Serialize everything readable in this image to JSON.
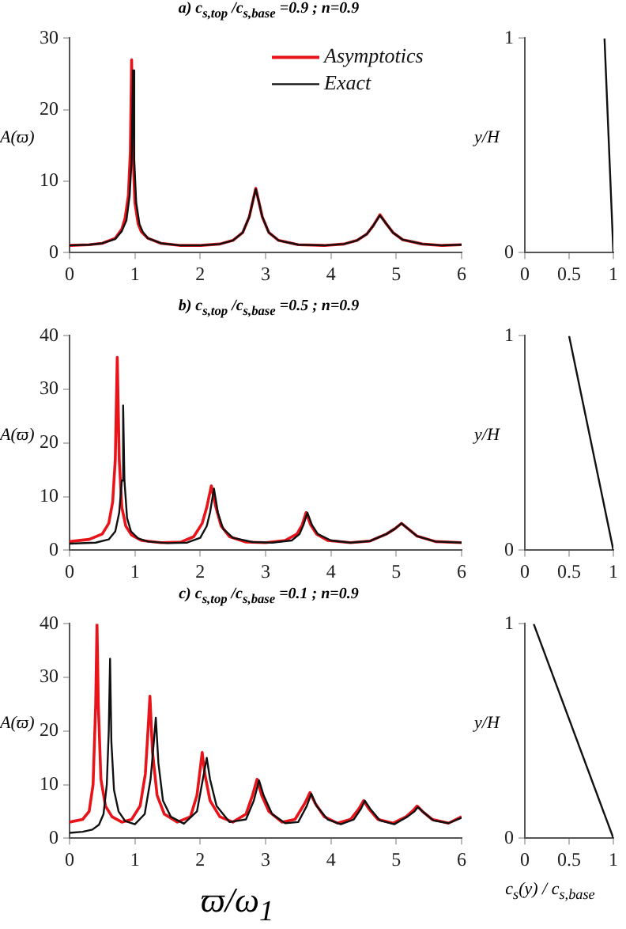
{
  "chart_data": [
    {
      "type": "line",
      "title": "a) c$_{s,top}$ /c$_{s,base}$ =0.9 ; n=0.9",
      "ylabel": "A(ϖ)",
      "xlim": [
        0,
        6
      ],
      "xticks": [
        0,
        1,
        2,
        3,
        4,
        5,
        6
      ],
      "ylim": [
        0,
        30
      ],
      "yticks": [
        0,
        10,
        20,
        30
      ],
      "grid": false,
      "marker": "none",
      "legend": "top right",
      "series": [
        {
          "name": "Asymptotics",
          "color": "#e8141a",
          "x": [
            0,
            0.3,
            0.5,
            0.7,
            0.8,
            0.85,
            0.9,
            0.93,
            0.95,
            0.97,
            1.0,
            1.05,
            1.1,
            1.2,
            1.4,
            1.7,
            2.0,
            2.3,
            2.5,
            2.65,
            2.75,
            2.8,
            2.85,
            2.9,
            2.95,
            3.05,
            3.2,
            3.5,
            3.9,
            4.2,
            4.4,
            4.55,
            4.65,
            4.75,
            4.85,
            4.95,
            5.1,
            5.4,
            5.7,
            6
          ],
          "values": [
            1,
            1.1,
            1.3,
            2,
            3.3,
            4.8,
            8,
            14,
            27,
            14,
            7,
            4,
            2.9,
            2,
            1.3,
            1,
            1,
            1.2,
            1.7,
            2.8,
            5,
            7,
            9,
            7,
            5,
            2.8,
            1.7,
            1.1,
            1,
            1.2,
            1.7,
            2.6,
            3.8,
            5.3,
            4,
            2.8,
            1.8,
            1.2,
            1,
            1.1
          ]
        },
        {
          "name": "Exact",
          "color": "#111111",
          "x": [
            0,
            0.3,
            0.5,
            0.7,
            0.8,
            0.87,
            0.92,
            0.95,
            0.97,
            0.99,
            1.02,
            1.07,
            1.12,
            1.2,
            1.4,
            1.7,
            2.0,
            2.3,
            2.5,
            2.65,
            2.75,
            2.8,
            2.85,
            2.9,
            2.95,
            3.05,
            3.2,
            3.5,
            3.9,
            4.2,
            4.4,
            4.55,
            4.65,
            4.75,
            4.85,
            4.95,
            5.1,
            5.4,
            5.7,
            6
          ],
          "values": [
            1,
            1.1,
            1.3,
            1.9,
            3,
            4.5,
            8,
            13,
            25.5,
            13,
            7,
            4,
            2.9,
            2,
            1.3,
            1,
            1,
            1.2,
            1.7,
            2.8,
            5,
            7,
            8.9,
            7,
            5,
            2.8,
            1.7,
            1.1,
            1,
            1.2,
            1.7,
            2.6,
            3.8,
            5.2,
            4,
            2.8,
            1.8,
            1.2,
            1,
            1.1
          ]
        }
      ]
    },
    {
      "type": "line",
      "ylabel": "y/H",
      "xlim": [
        0,
        1
      ],
      "xticks": [
        0,
        0.5,
        1
      ],
      "ylim": [
        0,
        1
      ],
      "yticks": [
        0,
        1
      ],
      "grid": false,
      "marker": "none",
      "series": [
        {
          "color": "#111111",
          "x": [
            0.9,
            1
          ],
          "values": [
            1,
            0
          ]
        }
      ]
    },
    {
      "type": "line",
      "title": "b) c$_{s,top}$ /c$_{s,base}$ =0.5 ; n=0.9",
      "ylabel": "A(ϖ)",
      "xlim": [
        0,
        6
      ],
      "xticks": [
        0,
        1,
        2,
        3,
        4,
        5,
        6
      ],
      "ylim": [
        0,
        40
      ],
      "yticks": [
        0,
        10,
        20,
        30,
        40
      ],
      "grid": false,
      "marker": "none",
      "series": [
        {
          "color": "#e8141a",
          "x": [
            0,
            0.3,
            0.5,
            0.6,
            0.66,
            0.7,
            0.73,
            0.76,
            0.8,
            0.86,
            0.95,
            1.1,
            1.4,
            1.7,
            1.9,
            2.03,
            2.1,
            2.17,
            2.24,
            2.32,
            2.45,
            2.7,
            3.0,
            3.3,
            3.48,
            3.56,
            3.62,
            3.69,
            3.78,
            3.95,
            4.3,
            4.6,
            4.85,
            4.98,
            5.08,
            5.18,
            5.32,
            5.6,
            6
          ],
          "values": [
            1.6,
            2,
            3,
            5,
            9,
            17,
            36,
            17,
            8,
            4.5,
            2.8,
            1.8,
            1.4,
            1.5,
            2.5,
            5,
            8,
            12,
            8,
            4.5,
            2.5,
            1.5,
            1.4,
            1.8,
            3,
            4.7,
            7,
            4.7,
            3,
            1.8,
            1.4,
            1.7,
            3,
            4,
            5,
            4,
            2.6,
            1.6,
            1.4
          ]
        },
        {
          "color": "#111111",
          "x": [
            0,
            0.4,
            0.6,
            0.7,
            0.76,
            0.8,
            0.82,
            0.84,
            0.88,
            0.94,
            1.05,
            1.2,
            1.5,
            1.8,
            2.0,
            2.1,
            2.15,
            2.21,
            2.27,
            2.35,
            2.5,
            2.8,
            3.1,
            3.4,
            3.52,
            3.58,
            3.64,
            3.71,
            3.8,
            4.0,
            4.3,
            4.6,
            4.85,
            4.98,
            5.08,
            5.18,
            5.32,
            5.6,
            6
          ],
          "values": [
            1.2,
            1.4,
            2,
            3.5,
            7,
            13,
            27,
            13,
            6,
            3.5,
            2.2,
            1.6,
            1.3,
            1.4,
            2.3,
            4.5,
            7,
            11.5,
            7,
            4,
            2.3,
            1.5,
            1.4,
            1.8,
            3,
            4.7,
            7,
            4.7,
            3,
            1.8,
            1.4,
            1.7,
            3,
            4,
            5,
            4,
            2.6,
            1.6,
            1.4
          ]
        }
      ]
    },
    {
      "type": "line",
      "ylabel": "y/H",
      "xlim": [
        0,
        1
      ],
      "xticks": [
        0,
        0.5,
        1
      ],
      "ylim": [
        0,
        1
      ],
      "yticks": [
        0,
        1
      ],
      "grid": false,
      "marker": "none",
      "series": [
        {
          "color": "#111111",
          "x": [
            0.5,
            1
          ],
          "values": [
            1,
            0
          ]
        }
      ]
    },
    {
      "type": "line",
      "title": "c) c$_{s,top}$ /c$_{s,base}$ =0.1 ; n=0.9",
      "ylabel": "A(ϖ)",
      "xlabel": "ϖ/ω$_{1}$",
      "xlim": [
        0,
        6
      ],
      "xticks": [
        0,
        1,
        2,
        3,
        4,
        5,
        6
      ],
      "ylim": [
        0,
        40
      ],
      "yticks": [
        0,
        10,
        20,
        30,
        40
      ],
      "grid": false,
      "marker": "none",
      "series": [
        {
          "color": "#e8141a",
          "x": [
            0,
            0.2,
            0.3,
            0.36,
            0.4,
            0.42,
            0.44,
            0.48,
            0.55,
            0.65,
            0.8,
            0.95,
            1.08,
            1.16,
            1.2,
            1.23,
            1.27,
            1.34,
            1.45,
            1.65,
            1.85,
            1.95,
            2.0,
            2.03,
            2.07,
            2.15,
            2.3,
            2.5,
            2.7,
            2.8,
            2.87,
            2.94,
            3.05,
            3.25,
            3.45,
            3.6,
            3.68,
            3.76,
            3.9,
            4.1,
            4.3,
            4.43,
            4.5,
            4.58,
            4.72,
            4.95,
            5.15,
            5.26,
            5.32,
            5.4,
            5.55,
            5.8,
            6
          ],
          "values": [
            3,
            3.5,
            5,
            10,
            25,
            40,
            25,
            11,
            6,
            4,
            3,
            3.5,
            6,
            12,
            20,
            26.5,
            16,
            8,
            4.5,
            3,
            4,
            8,
            13,
            16,
            12,
            7,
            4,
            3,
            4.5,
            8,
            11,
            8,
            5,
            3,
            3.5,
            6.5,
            8.5,
            6.5,
            4,
            2.8,
            3.5,
            5.5,
            7,
            5.5,
            3.5,
            2.8,
            4,
            5.2,
            6,
            5,
            3.5,
            2.8,
            4
          ]
        },
        {
          "color": "#111111",
          "x": [
            0,
            0.2,
            0.35,
            0.45,
            0.52,
            0.57,
            0.6,
            0.62,
            0.64,
            0.68,
            0.75,
            0.85,
            1.0,
            1.15,
            1.24,
            1.29,
            1.32,
            1.36,
            1.43,
            1.55,
            1.75,
            1.95,
            2.04,
            2.1,
            2.15,
            2.25,
            2.45,
            2.7,
            2.82,
            2.9,
            2.97,
            3.1,
            3.3,
            3.5,
            3.63,
            3.7,
            3.78,
            3.95,
            4.15,
            4.35,
            4.46,
            4.52,
            4.6,
            4.75,
            4.97,
            5.17,
            5.28,
            5.33,
            5.42,
            5.57,
            5.8,
            6
          ],
          "values": [
            1,
            1.2,
            1.6,
            2.5,
            4.5,
            10,
            20,
            33.5,
            18,
            9,
            5,
            3.2,
            2.6,
            4.5,
            11,
            18,
            22.5,
            14,
            7,
            4,
            2.7,
            5,
            11,
            15,
            11,
            6,
            3,
            3.5,
            7,
            10.8,
            8,
            4.5,
            2.8,
            3,
            6,
            8.3,
            6,
            3.5,
            2.6,
            3.5,
            5.5,
            7,
            5.5,
            3.3,
            2.6,
            4,
            5,
            5.8,
            4.8,
            3.3,
            2.8,
            3.8
          ]
        }
      ]
    },
    {
      "type": "line",
      "ylabel": "y/H",
      "xlabel": "c$_{s}$(y) / c$_{s,base}$",
      "xlim": [
        0,
        1
      ],
      "xticks": [
        0,
        0.5,
        1
      ],
      "ylim": [
        0,
        1
      ],
      "yticks": [
        0,
        1
      ],
      "grid": false,
      "marker": "none",
      "series": [
        {
          "color": "#111111",
          "x": [
            0.1,
            1
          ],
          "values": [
            1,
            0
          ]
        }
      ]
    }
  ]
}
